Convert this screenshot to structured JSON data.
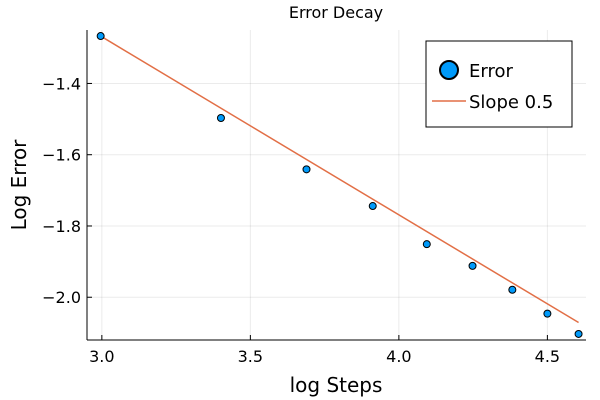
{
  "chart_data": {
    "type": "scatter",
    "title": "Error Decay",
    "xlabel": "log Steps",
    "ylabel": "Log Error",
    "xlim": [
      2.95,
      4.63
    ],
    "ylim": [
      -2.12,
      -1.25
    ],
    "x_ticks": [
      {
        "value": 3.0,
        "label": "3.0"
      },
      {
        "value": 3.5,
        "label": "3.5"
      },
      {
        "value": 4.0,
        "label": "4.0"
      },
      {
        "value": 4.5,
        "label": "4.5"
      }
    ],
    "y_ticks": [
      {
        "value": -1.4,
        "label": "−1.4"
      },
      {
        "value": -1.6,
        "label": "−1.6"
      },
      {
        "value": -1.8,
        "label": "−1.8"
      },
      {
        "value": -2.0,
        "label": "−2.0"
      }
    ],
    "grid": true,
    "legend_position": "top-right",
    "series": [
      {
        "name": "Error",
        "kind": "scatter",
        "color": "#009AFA",
        "points": [
          {
            "x": 2.996,
            "y": -1.267
          },
          {
            "x": 3.401,
            "y": -1.497
          },
          {
            "x": 3.689,
            "y": -1.641
          },
          {
            "x": 3.912,
            "y": -1.744
          },
          {
            "x": 4.094,
            "y": -1.851
          },
          {
            "x": 4.248,
            "y": -1.912
          },
          {
            "x": 4.382,
            "y": -1.979
          },
          {
            "x": 4.5,
            "y": -2.046
          },
          {
            "x": 4.605,
            "y": -2.103
          }
        ]
      },
      {
        "name": "Slope 0.5",
        "kind": "line",
        "color": "#E26F46",
        "points": [
          {
            "x": 2.996,
            "y": -1.267
          },
          {
            "x": 4.605,
            "y": -2.071
          }
        ]
      }
    ]
  }
}
